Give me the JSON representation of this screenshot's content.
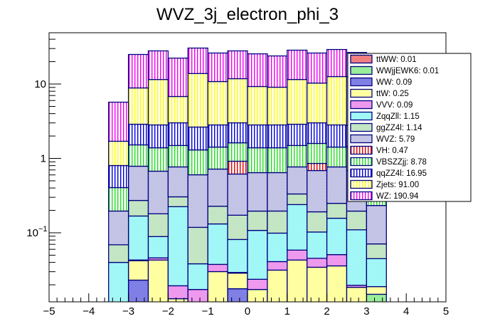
{
  "chart_data": {
    "type": "bar",
    "subtype": "stacked-histogram",
    "title": "WVZ_3j_electron_phi_3",
    "xlabel": "",
    "ylabel": "",
    "xlim": [
      -5,
      5
    ],
    "ylim": [
      0.0118,
      48.9
    ],
    "yscale": "log",
    "grid": false,
    "legend_position": "top-right",
    "x_ticks": [
      -5,
      -4,
      -3,
      -2,
      -1,
      0,
      1,
      2,
      3,
      4,
      5
    ],
    "x_tick_labels": [
      "−5",
      "−4",
      "−3",
      "−2",
      "−1",
      "0",
      "1",
      "2",
      "3",
      "4",
      "5"
    ],
    "y_ticks": [
      0.1,
      1,
      10
    ],
    "y_tick_labels": [
      "10",
      "1",
      "10"
    ],
    "y_tick_superscripts": [
      "−1",
      "",
      ""
    ],
    "bin_edges": [
      -3.5,
      -3.0,
      -2.5,
      -2.0,
      -1.5,
      -1.0,
      -0.5,
      0.0,
      0.5,
      1.0,
      1.5,
      2.0,
      2.5,
      3.0,
      3.5
    ],
    "series": [
      {
        "name": "ttWW",
        "legend": "ttWW: 0.01",
        "color": "#e00000",
        "pattern": "checker",
        "values": [
          0,
          0,
          0,
          0,
          0,
          0,
          0,
          0,
          0,
          0,
          0,
          0,
          0,
          0
        ]
      },
      {
        "name": "WWjjEWK6",
        "legend": "WWjjEWK6: 0.01",
        "color": "#33dd33",
        "pattern": "checker",
        "values": [
          0,
          0,
          0,
          0,
          0,
          0,
          0,
          0,
          0,
          0,
          0,
          0,
          0,
          0.0149
        ]
      },
      {
        "name": "WW",
        "legend": "WW: 0.09",
        "color": "#0000cc",
        "pattern": "checker",
        "values": [
          0,
          0.0231,
          0,
          0,
          0,
          0,
          0.0177,
          0,
          0,
          0.003,
          0,
          0,
          0,
          0
        ]
      },
      {
        "name": "ttW",
        "legend": "ttW: 0.25",
        "color": "#ffff44",
        "pattern": "checker",
        "values": [
          0,
          0.019,
          0.043,
          0.013,
          0,
          0.0301,
          0.011,
          0.0173,
          0.0315,
          0.04,
          0.0344,
          0.0359,
          0.0185,
          0.004
        ]
      },
      {
        "name": "VVV",
        "legend": "VVV: 0.09",
        "color": "#dd33dd",
        "pattern": "checker",
        "values": [
          0,
          0.001,
          0.003,
          0.0064,
          0.0173,
          0.0075,
          0.0006,
          0.0064,
          0.0095,
          0.0155,
          0.011,
          0.015,
          0.0012,
          0
        ]
      },
      {
        "name": "ZqqZll",
        "legend": "ZqqZll: 1.15",
        "color": "#44eeee",
        "pattern": "checker",
        "values": [
          0.04,
          0.125,
          0.043,
          0.205,
          0.021,
          0.094,
          0.052,
          0.084,
          0.058,
          0.181,
          0.057,
          0.106,
          0.09,
          0.026
        ]
      },
      {
        "name": "ggZZ4l",
        "legend": "ggZZ4l: 1.14",
        "color": "#88cc88",
        "pattern": "checker",
        "values": [
          0.029,
          0.104,
          0.091,
          0.08,
          0.08,
          0.096,
          0.091,
          0.088,
          0.097,
          0.093,
          0.089,
          0.092,
          0.086,
          0.026
        ]
      },
      {
        "name": "WVZ",
        "legend": "WVZ: 5.79",
        "color": "#8888cc",
        "pattern": "checker",
        "values": [
          0.127,
          0.513,
          0.493,
          0.464,
          0.484,
          0.491,
          0.444,
          0.448,
          0.448,
          0.436,
          0.496,
          0.519,
          0.492,
          0.162
        ]
      },
      {
        "name": "VH",
        "legend": "VH: 0.47",
        "color": "#e00000",
        "pattern": "vlines",
        "values": [
          0,
          0,
          0,
          0,
          0,
          0,
          0.3,
          0,
          0,
          0,
          0.169,
          0,
          0,
          0
        ]
      },
      {
        "name": "VBSZZjj",
        "legend": "VBSZZjj: 8.78",
        "color": "#22dd22",
        "pattern": "vlines",
        "values": [
          0.209,
          0.735,
          0.717,
          0.722,
          0.698,
          0.701,
          0.704,
          0.746,
          0.746,
          0.722,
          0.733,
          0.652,
          0.755,
          0.172
        ]
      },
      {
        "name": "qqZZ4l",
        "legend": "qqZZ4l: 16.95",
        "color": "#0000dd",
        "pattern": "vlines",
        "values": [
          0.397,
          1.36,
          1.43,
          1.52,
          1.34,
          1.4,
          1.39,
          1.43,
          1.43,
          1.39,
          1.42,
          1.4,
          1.33,
          0.397
        ]
      },
      {
        "name": "Zjets",
        "legend": "Zjets: 91.00",
        "color": "#ffff00",
        "pattern": "vlines",
        "values": [
          0.898,
          5.98,
          8.68,
          3.79,
          11.2,
          7.98,
          8.79,
          6.44,
          6.24,
          8.62,
          7.29,
          9.78,
          9.78,
          0.9
        ]
      },
      {
        "name": "WZ",
        "legend": "WZ: 190.94",
        "color": "#ee00ee",
        "pattern": "vlines",
        "values": [
          4.0,
          16.1,
          16.4,
          15.5,
          16.6,
          15.3,
          16.1,
          16.2,
          14.8,
          17.0,
          15.8,
          16.5,
          14.0,
          4.0
        ]
      }
    ],
    "outline_color": "#00007f"
  }
}
